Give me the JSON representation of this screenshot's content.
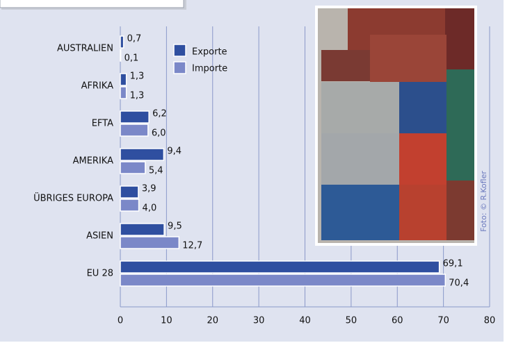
{
  "chart_data": {
    "type": "hbar",
    "categories": [
      "AUSTRALIEN",
      "AFRIKA",
      "EFTA",
      "AMERIKA",
      "ÜBRIGES EUROPA",
      "ASIEN",
      "EU 28"
    ],
    "series": [
      {
        "name": "Exporte",
        "color": "#2f4fa0",
        "values": [
          0.7,
          1.3,
          6.2,
          9.4,
          3.9,
          9.5,
          69.1
        ],
        "value_labels": [
          "0,7",
          "1,3",
          "6,2",
          "9,4",
          "3,9",
          "9,5",
          "69,1"
        ]
      },
      {
        "name": "Importe",
        "color": "#7b88c8",
        "values": [
          0.1,
          1.3,
          6.0,
          5.4,
          4.0,
          12.7,
          70.4
        ],
        "value_labels": [
          "0,1",
          "1,3",
          "6,0",
          "5,4",
          "4,0",
          "12,7",
          "70,4"
        ]
      }
    ],
    "xlim": [
      0,
      80
    ],
    "xticks": [
      0,
      10,
      20,
      30,
      40,
      50,
      60,
      70,
      80
    ],
    "grid": true,
    "legend": "upper left",
    "photo_credit": "Foto: © R.Kofler"
  }
}
